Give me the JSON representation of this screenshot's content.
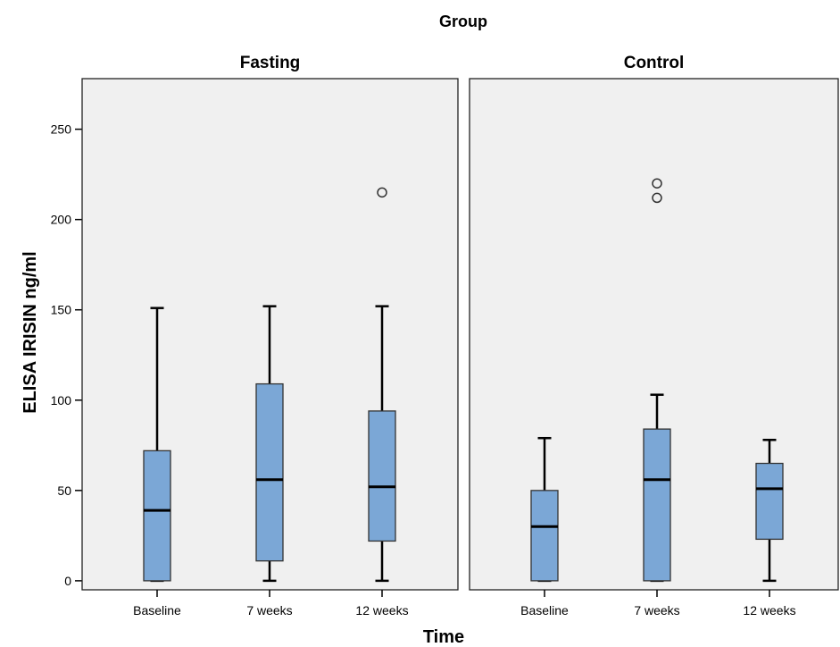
{
  "chart_data": {
    "type": "boxplot",
    "title": "Group",
    "xlabel": "Time",
    "ylabel": "ELISA  IRISIN ng/ml",
    "ylim": [
      -5,
      278
    ],
    "yticks": [
      0,
      50,
      100,
      150,
      200,
      250
    ],
    "categories": [
      "Baseline",
      "7 weeks",
      "12 weeks"
    ],
    "grid": false,
    "box_color": "#7BA7D6",
    "panel_background": "#F0F0F0",
    "panels": [
      {
        "name": "Fasting",
        "boxes": [
          {
            "category": "Baseline",
            "whisker_low": 0,
            "q1": 0,
            "median": 39,
            "q3": 72,
            "whisker_high": 151,
            "outliers": []
          },
          {
            "category": "7 weeks",
            "whisker_low": 0,
            "q1": 11,
            "median": 56,
            "q3": 109,
            "whisker_high": 152,
            "outliers": []
          },
          {
            "category": "12 weeks",
            "whisker_low": 0,
            "q1": 22,
            "median": 52,
            "q3": 94,
            "whisker_high": 152,
            "outliers": [
              215
            ]
          }
        ]
      },
      {
        "name": "Control",
        "boxes": [
          {
            "category": "Baseline",
            "whisker_low": 0,
            "q1": 0,
            "median": 30,
            "q3": 50,
            "whisker_high": 79,
            "outliers": []
          },
          {
            "category": "7 weeks",
            "whisker_low": 0,
            "q1": 0,
            "median": 56,
            "q3": 84,
            "whisker_high": 103,
            "outliers": [
              212,
              220
            ]
          },
          {
            "category": "12 weeks",
            "whisker_low": 0,
            "q1": 23,
            "median": 51,
            "q3": 65,
            "whisker_high": 78,
            "outliers": []
          }
        ]
      }
    ]
  }
}
